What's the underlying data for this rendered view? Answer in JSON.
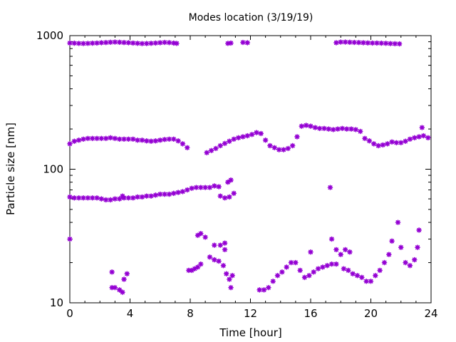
{
  "chart_data": {
    "type": "scatter",
    "title": "Modes location (3/19/19)",
    "xlabel": "Time [hour]",
    "ylabel": "Particle size [nm]",
    "xlim": [
      0,
      24
    ],
    "ylim": [
      10,
      1000
    ],
    "yscale": "log",
    "x_ticks": [
      0,
      4,
      8,
      12,
      16,
      20,
      24
    ],
    "y_ticks": [
      10,
      100,
      1000
    ],
    "grid": false,
    "marker_color": "#9400d3",
    "series": [
      {
        "points": [
          [
            0.0,
            880
          ],
          [
            0.3,
            878
          ],
          [
            0.6,
            875
          ],
          [
            0.9,
            873
          ],
          [
            1.2,
            875
          ],
          [
            1.5,
            878
          ],
          [
            1.8,
            880
          ],
          [
            2.1,
            885
          ],
          [
            2.4,
            888
          ],
          [
            2.7,
            892
          ],
          [
            3.0,
            895
          ],
          [
            3.3,
            892
          ],
          [
            3.6,
            888
          ],
          [
            3.9,
            885
          ],
          [
            4.2,
            880
          ],
          [
            4.5,
            876
          ],
          [
            4.8,
            872
          ],
          [
            5.1,
            873
          ],
          [
            5.4,
            876
          ],
          [
            5.7,
            880
          ],
          [
            6.0,
            885
          ],
          [
            6.3,
            890
          ],
          [
            6.6,
            887
          ],
          [
            6.9,
            880
          ],
          [
            7.1,
            875
          ],
          [
            10.5,
            875
          ],
          [
            10.7,
            880
          ],
          [
            11.5,
            890
          ],
          [
            11.8,
            885
          ],
          [
            17.7,
            885
          ],
          [
            18.0,
            895
          ],
          [
            18.3,
            895
          ],
          [
            18.6,
            892
          ],
          [
            18.9,
            890
          ],
          [
            19.2,
            888
          ],
          [
            19.5,
            885
          ],
          [
            19.8,
            882
          ],
          [
            20.1,
            880
          ],
          [
            20.4,
            880
          ],
          [
            20.7,
            878
          ],
          [
            21.0,
            876
          ],
          [
            21.3,
            872
          ],
          [
            21.6,
            870
          ],
          [
            21.9,
            868
          ]
        ]
      },
      {
        "points": [
          [
            0.0,
            155
          ],
          [
            0.3,
            162
          ],
          [
            0.6,
            165
          ],
          [
            0.9,
            168
          ],
          [
            1.2,
            170
          ],
          [
            1.5,
            170
          ],
          [
            1.8,
            170
          ],
          [
            2.1,
            170
          ],
          [
            2.4,
            170
          ],
          [
            2.7,
            172
          ],
          [
            3.0,
            170
          ],
          [
            3.3,
            168
          ],
          [
            3.6,
            168
          ],
          [
            3.9,
            168
          ],
          [
            4.2,
            168
          ],
          [
            4.5,
            165
          ],
          [
            4.8,
            165
          ],
          [
            5.1,
            163
          ],
          [
            5.4,
            162
          ],
          [
            5.7,
            163
          ],
          [
            6.0,
            165
          ],
          [
            6.3,
            167
          ],
          [
            6.6,
            168
          ],
          [
            6.9,
            168
          ],
          [
            7.2,
            163
          ],
          [
            7.5,
            155
          ],
          [
            7.8,
            145
          ],
          [
            9.1,
            133
          ],
          [
            9.4,
            138
          ],
          [
            9.7,
            143
          ],
          [
            10.0,
            150
          ],
          [
            10.3,
            156
          ],
          [
            10.6,
            162
          ],
          [
            10.9,
            168
          ],
          [
            11.2,
            172
          ],
          [
            11.5,
            175
          ],
          [
            11.8,
            178
          ],
          [
            12.1,
            182
          ],
          [
            12.4,
            188
          ],
          [
            12.7,
            185
          ],
          [
            13.0,
            165
          ],
          [
            13.3,
            150
          ],
          [
            13.6,
            145
          ],
          [
            13.9,
            140
          ],
          [
            14.2,
            140
          ],
          [
            14.5,
            143
          ],
          [
            14.8,
            150
          ],
          [
            15.1,
            175
          ],
          [
            15.4,
            210
          ],
          [
            15.7,
            213
          ],
          [
            16.0,
            210
          ],
          [
            16.3,
            205
          ],
          [
            16.6,
            202
          ],
          [
            16.9,
            202
          ],
          [
            17.2,
            200
          ],
          [
            17.5,
            198
          ],
          [
            17.8,
            200
          ],
          [
            18.1,
            202
          ],
          [
            18.4,
            200
          ],
          [
            18.7,
            200
          ],
          [
            19.0,
            198
          ],
          [
            19.3,
            192
          ],
          [
            19.6,
            170
          ],
          [
            19.9,
            163
          ],
          [
            20.2,
            155
          ],
          [
            20.5,
            150
          ],
          [
            20.8,
            152
          ],
          [
            21.1,
            155
          ],
          [
            21.4,
            160
          ],
          [
            21.7,
            158
          ],
          [
            22.0,
            158
          ],
          [
            22.3,
            162
          ],
          [
            22.6,
            168
          ],
          [
            22.9,
            172
          ],
          [
            23.2,
            175
          ],
          [
            23.5,
            178
          ],
          [
            23.8,
            172
          ],
          [
            23.4,
            205
          ]
        ]
      },
      {
        "points": [
          [
            0.0,
            62
          ],
          [
            0.3,
            61
          ],
          [
            0.6,
            61
          ],
          [
            0.9,
            61
          ],
          [
            1.2,
            61
          ],
          [
            1.5,
            61
          ],
          [
            1.8,
            61
          ],
          [
            2.1,
            60
          ],
          [
            2.4,
            59
          ],
          [
            2.7,
            59
          ],
          [
            3.0,
            60
          ],
          [
            3.3,
            60
          ],
          [
            3.6,
            61
          ],
          [
            3.9,
            61
          ],
          [
            4.2,
            61
          ],
          [
            4.5,
            62
          ],
          [
            4.8,
            62
          ],
          [
            5.1,
            63
          ],
          [
            5.4,
            63
          ],
          [
            5.7,
            64
          ],
          [
            6.0,
            65
          ],
          [
            6.3,
            65
          ],
          [
            6.6,
            65
          ],
          [
            6.9,
            66
          ],
          [
            7.2,
            67
          ],
          [
            7.5,
            68
          ],
          [
            7.8,
            70
          ],
          [
            8.1,
            72
          ],
          [
            8.4,
            73
          ],
          [
            8.7,
            73
          ],
          [
            9.0,
            73
          ],
          [
            9.3,
            73
          ],
          [
            9.6,
            75
          ],
          [
            9.9,
            74
          ],
          [
            10.0,
            63
          ],
          [
            10.3,
            61
          ],
          [
            10.6,
            62
          ],
          [
            10.9,
            66
          ],
          [
            10.5,
            80
          ],
          [
            10.7,
            83
          ],
          [
            3.5,
            63
          ]
        ]
      },
      {
        "points": [
          [
            0.0,
            30
          ],
          [
            2.8,
            17
          ],
          [
            2.8,
            13
          ],
          [
            3.0,
            13
          ],
          [
            3.3,
            12.5
          ],
          [
            3.5,
            12
          ],
          [
            3.6,
            15
          ],
          [
            3.8,
            16.5
          ],
          [
            7.9,
            17.5
          ],
          [
            8.1,
            17.5
          ],
          [
            8.3,
            18
          ],
          [
            8.5,
            18.5
          ],
          [
            8.7,
            19.5
          ],
          [
            8.5,
            32
          ],
          [
            8.7,
            33
          ],
          [
            9.0,
            31
          ],
          [
            9.3,
            22
          ],
          [
            9.6,
            21
          ],
          [
            9.9,
            20.5
          ],
          [
            10.2,
            19
          ],
          [
            10.4,
            16.5
          ],
          [
            10.6,
            15
          ],
          [
            10.8,
            16
          ],
          [
            10.7,
            13
          ],
          [
            9.6,
            27
          ],
          [
            10.0,
            27
          ],
          [
            10.3,
            28
          ],
          [
            10.3,
            25
          ],
          [
            12.6,
            12.5
          ],
          [
            12.9,
            12.5
          ],
          [
            13.2,
            13
          ],
          [
            13.5,
            14.5
          ],
          [
            13.8,
            16
          ],
          [
            14.1,
            17
          ],
          [
            14.4,
            18.5
          ],
          [
            14.7,
            20
          ],
          [
            15.0,
            20
          ],
          [
            15.3,
            17.5
          ],
          [
            15.6,
            15.5
          ],
          [
            15.9,
            16
          ],
          [
            16.2,
            17
          ],
          [
            16.5,
            18
          ],
          [
            16.8,
            18.5
          ],
          [
            17.1,
            19
          ],
          [
            17.4,
            19.5
          ],
          [
            17.7,
            19.5
          ],
          [
            16.0,
            24
          ],
          [
            17.4,
            30
          ],
          [
            17.7,
            25
          ],
          [
            18.0,
            23
          ],
          [
            18.3,
            25
          ],
          [
            18.6,
            24
          ],
          [
            18.2,
            18
          ],
          [
            18.5,
            17.5
          ],
          [
            18.8,
            16.5
          ],
          [
            19.1,
            16
          ],
          [
            19.4,
            15.5
          ],
          [
            19.7,
            14.5
          ],
          [
            20.0,
            14.5
          ],
          [
            20.3,
            16
          ],
          [
            20.6,
            17.5
          ],
          [
            20.9,
            20
          ],
          [
            21.2,
            23
          ],
          [
            21.4,
            29
          ],
          [
            21.8,
            40
          ],
          [
            22.0,
            26
          ],
          [
            22.3,
            20
          ],
          [
            22.6,
            19
          ],
          [
            22.9,
            21
          ],
          [
            23.1,
            26
          ],
          [
            23.2,
            35
          ],
          [
            17.3,
            73
          ]
        ]
      }
    ]
  }
}
